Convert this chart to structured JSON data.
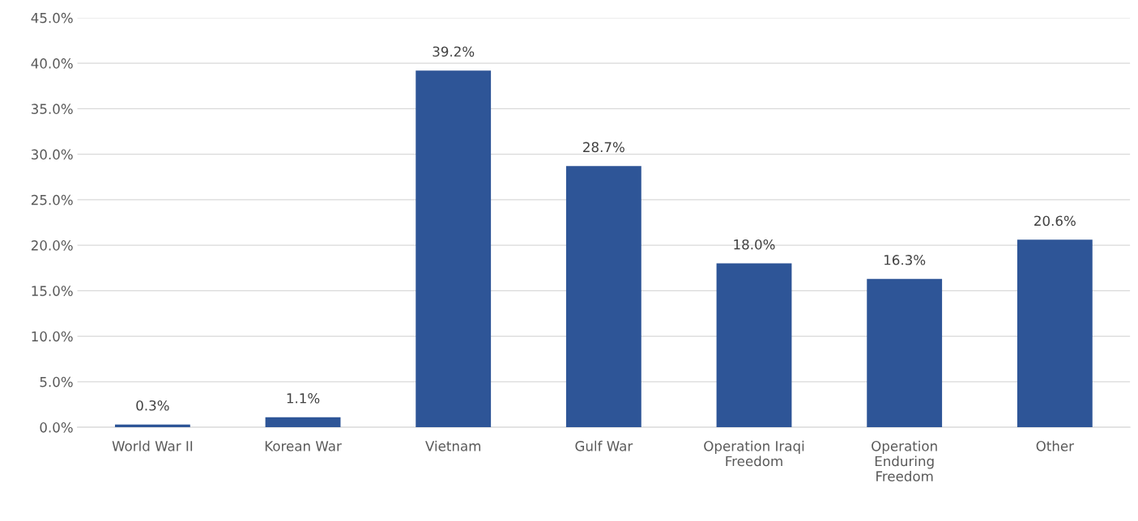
{
  "chart_data": {
    "type": "bar",
    "categories": [
      "World War II",
      "Korean War",
      "Vietnam",
      "Gulf War",
      "Operation Iraqi\nFreedom",
      "Operation\nEnduring\nFreedom",
      "Other"
    ],
    "values": [
      0.3,
      1.1,
      39.2,
      28.7,
      18.0,
      16.3,
      20.6
    ],
    "value_labels": [
      "0.3%",
      "1.1%",
      "39.2%",
      "28.7%",
      "18.0%",
      "16.3%",
      "20.6%"
    ],
    "color": "#2e5597",
    "ylim": [
      0,
      45
    ],
    "yticks": [
      {
        "value": 0,
        "label": "0.0%"
      },
      {
        "value": 5,
        "label": "5.0%"
      },
      {
        "value": 10,
        "label": "10.0%"
      },
      {
        "value": 15,
        "label": "15.0%"
      },
      {
        "value": 20,
        "label": "20.0%"
      },
      {
        "value": 25,
        "label": "25.0%"
      },
      {
        "value": 30,
        "label": "30.0%"
      },
      {
        "value": 35,
        "label": "35.0%"
      },
      {
        "value": 40,
        "label": "40.0%"
      },
      {
        "value": 45,
        "label": "45.0%"
      }
    ],
    "grid": "y"
  }
}
